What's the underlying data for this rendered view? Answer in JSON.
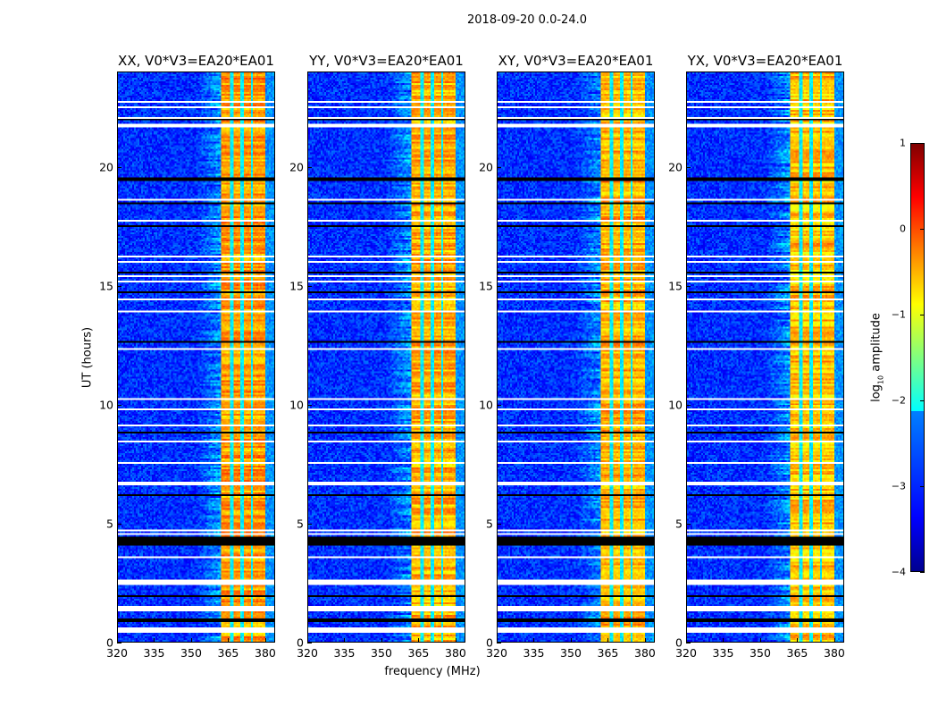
{
  "chart_data": {
    "type": "heatmap",
    "title": "2018-09-20 0.0-24.0",
    "xlabel": "frequency (MHz)",
    "ylabel": "UT (hours)",
    "xlim": [
      320,
      384
    ],
    "ylim": [
      0,
      24
    ],
    "xticks": [
      "320",
      "335",
      "350",
      "365",
      "380"
    ],
    "yticks": [
      "0",
      "5",
      "10",
      "15",
      "20"
    ],
    "xtick_values": [
      320,
      335,
      350,
      365,
      380
    ],
    "ytick_values": [
      0,
      5,
      10,
      15,
      20
    ],
    "panels": [
      {
        "title": "XX, V0*V3=EA20*EA01",
        "band_level": -0.4
      },
      {
        "title": "YY, V0*V3=EA20*EA01",
        "band_level": -0.5
      },
      {
        "title": "XY, V0*V3=EA20*EA01",
        "band_level": -0.5
      },
      {
        "title": "YX, V0*V3=EA20*EA01",
        "band_level": -0.6
      }
    ],
    "colormap": "jet",
    "colorbar": {
      "label_prefix": "log",
      "label_sub": "10",
      "label_suffix": " amplitude",
      "range": [
        -4,
        1
      ],
      "ticks": [
        "1",
        "0",
        "−1",
        "−2",
        "−3",
        "−4"
      ],
      "tick_values": [
        1,
        0,
        -1,
        -2,
        -3,
        -4
      ]
    },
    "background_level": -3.2,
    "rfi_band_mhz": [
      362,
      380
    ],
    "flagged_white_hours": [
      [
        0.35,
        0.6
      ],
      [
        1.3,
        1.5
      ],
      [
        2.4,
        2.65
      ],
      [
        3.55,
        3.6
      ],
      [
        4.5,
        4.55
      ],
      [
        4.65,
        4.7
      ],
      [
        5.9,
        5.95
      ],
      [
        6.6,
        6.75
      ],
      [
        7.5,
        7.55
      ],
      [
        8.4,
        8.45
      ],
      [
        8.6,
        8.65
      ],
      [
        9.1,
        9.15
      ],
      [
        9.75,
        9.8
      ],
      [
        10.2,
        10.25
      ],
      [
        10.4,
        10.45
      ],
      [
        11.3,
        11.35
      ],
      [
        12.3,
        12.35
      ],
      [
        12.5,
        12.55
      ],
      [
        13.9,
        13.95
      ],
      [
        14.4,
        14.45
      ],
      [
        15.15,
        15.25
      ],
      [
        15.4,
        15.45
      ],
      [
        16.0,
        16.05
      ],
      [
        16.2,
        16.25
      ],
      [
        17.3,
        17.35
      ],
      [
        17.7,
        17.75
      ],
      [
        17.9,
        17.95
      ],
      [
        18.2,
        18.25
      ],
      [
        18.6,
        18.65
      ],
      [
        21.7,
        21.8
      ],
      [
        22.05,
        22.1
      ],
      [
        22.5,
        22.6
      ],
      [
        22.75,
        22.8
      ]
    ],
    "flagged_black_hours": [
      [
        0.85,
        0.95
      ],
      [
        1.9,
        1.95
      ],
      [
        4.05,
        4.4
      ],
      [
        6.15,
        6.2
      ],
      [
        7.7,
        7.75
      ],
      [
        8.8,
        8.85
      ],
      [
        12.6,
        12.65
      ],
      [
        14.7,
        14.75
      ],
      [
        15.55,
        15.6
      ],
      [
        17.5,
        17.55
      ],
      [
        18.45,
        18.5
      ],
      [
        19.45,
        19.55
      ],
      [
        22.0,
        22.03
      ]
    ]
  }
}
